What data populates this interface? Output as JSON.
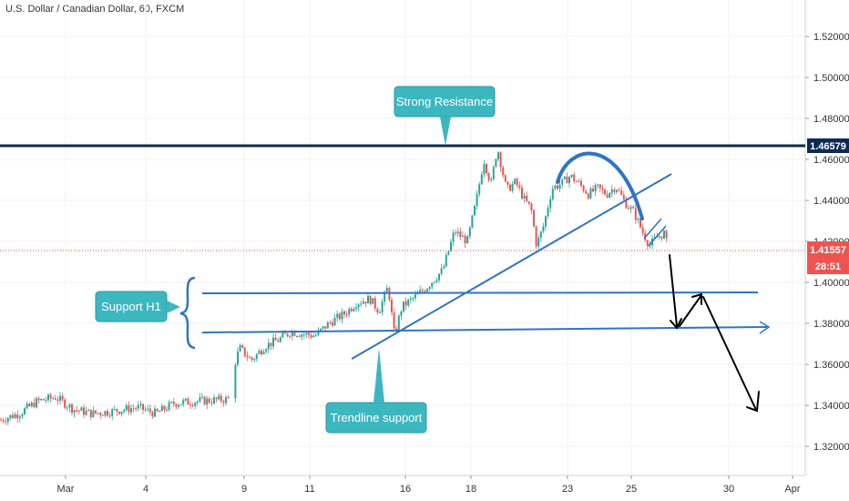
{
  "title": "U.S. Dollar / Canadian Dollar, 60, FXCM",
  "chart_data": {
    "type": "candlestick",
    "symbol": "USDCAD",
    "ylim": [
      1.31,
      1.53
    ],
    "y_ticks": [
      "1.52000",
      "1.50000",
      "1.48000",
      "1.46000",
      "1.44000",
      "1.42000",
      "1.40000",
      "1.38000",
      "1.36000",
      "1.34000",
      "1.32000"
    ],
    "x_ticks": [
      "Mar",
      "4",
      "9",
      "11",
      "16",
      "18",
      "23",
      "25",
      "30",
      "Apr"
    ],
    "price_path": [
      [
        0,
        1.333
      ],
      [
        20,
        1.336
      ],
      [
        40,
        1.342
      ],
      [
        60,
        1.344
      ],
      [
        80,
        1.338
      ],
      [
        100,
        1.336
      ],
      [
        120,
        1.337
      ],
      [
        150,
        1.339
      ],
      [
        170,
        1.336
      ],
      [
        190,
        1.341
      ],
      [
        215,
        1.342
      ],
      [
        250,
        1.343
      ],
      [
        255,
        1.358
      ],
      [
        262,
        1.368
      ],
      [
        275,
        1.362
      ],
      [
        290,
        1.369
      ],
      [
        305,
        1.372
      ],
      [
        318,
        1.376
      ],
      [
        330,
        1.375
      ],
      [
        345,
        1.374
      ],
      [
        360,
        1.38
      ],
      [
        378,
        1.385
      ],
      [
        390,
        1.39
      ],
      [
        405,
        1.392
      ],
      [
        415,
        1.386
      ],
      [
        425,
        1.398
      ],
      [
        432,
        1.374
      ],
      [
        440,
        1.388
      ],
      [
        455,
        1.393
      ],
      [
        468,
        1.398
      ],
      [
        485,
        1.406
      ],
      [
        498,
        1.425
      ],
      [
        512,
        1.42
      ],
      [
        522,
        1.44
      ],
      [
        530,
        1.46
      ],
      [
        538,
        1.448
      ],
      [
        545,
        1.466
      ],
      [
        555,
        1.445
      ],
      [
        565,
        1.449
      ],
      [
        575,
        1.44
      ],
      [
        582,
        1.436
      ],
      [
        588,
        1.418
      ],
      [
        596,
        1.428
      ],
      [
        605,
        1.446
      ],
      [
        615,
        1.448
      ],
      [
        625,
        1.452
      ],
      [
        635,
        1.448
      ],
      [
        645,
        1.443
      ],
      [
        655,
        1.446
      ],
      [
        665,
        1.443
      ],
      [
        675,
        1.447
      ],
      [
        685,
        1.439
      ],
      [
        695,
        1.434
      ],
      [
        705,
        1.424
      ],
      [
        712,
        1.418
      ],
      [
        720,
        1.422
      ],
      [
        728,
        1.424
      ],
      [
        733,
        1.4156
      ]
    ],
    "horizontal_lines": [
      {
        "name": "Strong Resistance",
        "y": 1.46579,
        "color": "#0d2a52"
      },
      {
        "name": "Support H1 upper",
        "y": 1.3945,
        "color": "#2f73c7"
      },
      {
        "name": "Support H1 lower",
        "y": 1.3775,
        "color": "#2f73c7"
      }
    ],
    "current_price": "1.41557",
    "resistance_price": "1.46579",
    "countdown": "28:51",
    "annotations": [
      "Strong Resistance",
      "Support H1",
      "Trendline support"
    ],
    "colors": {
      "up": "#26a69a",
      "down": "#ef5350",
      "resistance": "#0d2a52",
      "drawing": "#2f73c7",
      "callout": "#3cb7c0",
      "price_tag": "#ef5350"
    }
  }
}
